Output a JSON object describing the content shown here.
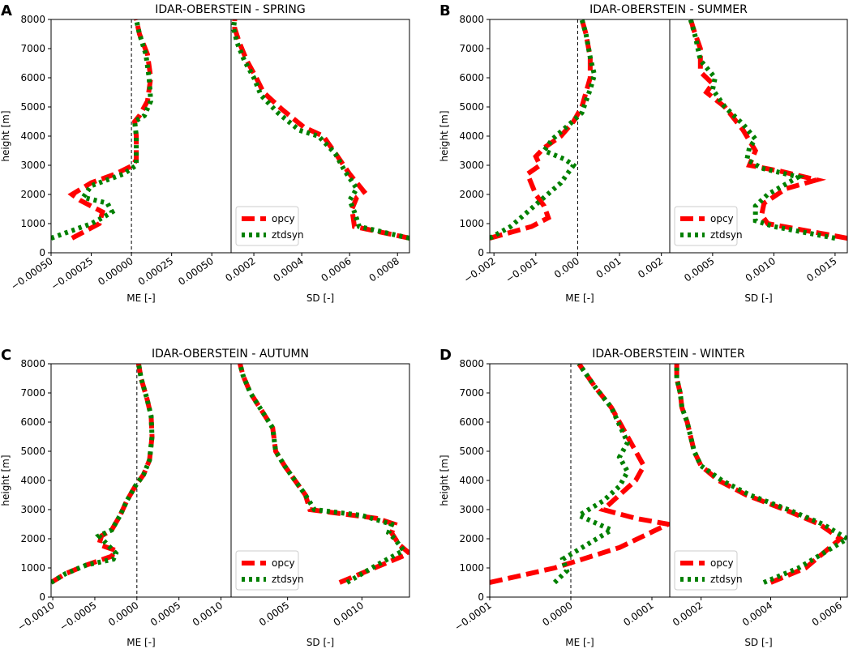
{
  "chart_data": [
    {
      "type": "line",
      "panel_label": "A",
      "title": "IDAR-OBERSTEIN - SPRING",
      "ylabel": "height [m]",
      "ylim": [
        0,
        8000
      ],
      "yticks": [
        "0",
        "1000",
        "2000",
        "3000",
        "4000",
        "5000",
        "6000",
        "7000",
        "8000"
      ],
      "me": {
        "xlabel": "ME [-]",
        "xlim": [
          -0.0005,
          0.00062
        ],
        "xticks": [
          -0.0005,
          -0.00025,
          0.0,
          0.00025,
          0.0005
        ],
        "xtick_labels": [
          "−0.00050",
          "−0.00025",
          "0.00000",
          "0.00025",
          "0.00050"
        ],
        "series": [
          {
            "name": "opcy",
            "x": [
              -0.00037,
              -0.0002,
              -0.00018,
              -0.00032,
              -0.00037,
              -0.00025,
              -0.0001,
              1e-05,
              3e-05,
              3e-05,
              2e-05,
              5e-05,
              0.0001,
              0.00012,
              0.0001,
              5e-05,
              3e-05
            ],
            "y": [
              500,
              1000,
              1400,
              1800,
              2000,
              2400,
              2700,
              3000,
              3200,
              4000,
              4500,
              4700,
              5200,
              6000,
              6800,
              7500,
              8000
            ]
          },
          {
            "name": "ztdsyn",
            "x": [
              -0.0005,
              -0.00025,
              -0.00018,
              -0.00012,
              -0.00015,
              -0.0003,
              -0.00025,
              -5e-05,
              3e-05,
              3e-05,
              2e-05,
              8e-05,
              0.00012,
              0.00011,
              9e-05,
              5e-05,
              3e-05
            ],
            "y": [
              500,
              1000,
              1200,
              1400,
              1700,
              1900,
              2300,
              2700,
              3000,
              4000,
              4500,
              4700,
              5200,
              6000,
              6800,
              7500,
              8000
            ]
          }
        ]
      },
      "sd": {
        "xlabel": "SD [-]",
        "xlim": [
          0.000105,
          0.00085
        ],
        "xticks": [
          0.0002,
          0.0004,
          0.0006,
          0.0008
        ],
        "xtick_labels": [
          "0.0002",
          "0.0004",
          "0.0006",
          "0.0008"
        ],
        "series": [
          {
            "name": "opcy",
            "x": [
              0.00085,
              0.00062,
              0.00061,
              0.00063,
              0.00066,
              0.0006,
              0.00055,
              0.00049,
              0.00041,
              0.00032,
              0.00024,
              0.00021,
              0.00017,
              0.00014,
              0.00012,
              0.00012
            ],
            "y": [
              500,
              900,
              1500,
              1900,
              2100,
              2700,
              3300,
              4000,
              4300,
              4900,
              5500,
              6000,
              6600,
              7200,
              7700,
              8000
            ]
          },
          {
            "name": "ztdsyn",
            "x": [
              0.00085,
              0.00064,
              0.00062,
              0.0006,
              0.00063,
              0.00058,
              0.00054,
              0.00047,
              0.00039,
              0.0003,
              0.00023,
              0.0002,
              0.00016,
              0.00013,
              0.000115,
              0.00012
            ],
            "y": [
              500,
              900,
              1400,
              1800,
              2200,
              2800,
              3400,
              4000,
              4200,
              4800,
              5400,
              6000,
              6600,
              7200,
              7700,
              8000
            ]
          }
        ]
      },
      "legend": [
        "opcy",
        "ztdsyn"
      ]
    },
    {
      "type": "line",
      "panel_label": "B",
      "title": "IDAR-OBERSTEIN - SUMMER",
      "ylabel": "height [m]",
      "ylim": [
        0,
        8000
      ],
      "yticks": [
        "0",
        "1000",
        "2000",
        "3000",
        "4000",
        "5000",
        "6000",
        "7000",
        "8000"
      ],
      "me": {
        "xlabel": "ME [-]",
        "xlim": [
          -0.0021,
          0.0022
        ],
        "xticks": [
          -0.002,
          -0.001,
          0.0,
          0.001,
          0.002
        ],
        "xtick_labels": [
          "−0.002",
          "−0.001",
          "0.000",
          "0.001",
          "0.002"
        ],
        "series": [
          {
            "name": "opcy",
            "x": [
              -0.0021,
              -0.0011,
              -0.0007,
              -0.0008,
              -0.001,
              -0.0012,
              -0.0009,
              -0.001,
              -0.0008,
              -0.0004,
              -0.0001,
              0.0001,
              0.0002,
              0.0003,
              0.0003,
              0.0002,
              0.0001
            ],
            "y": [
              500,
              900,
              1200,
              1600,
              2000,
              2700,
              3000,
              3300,
              3600,
              4000,
              4500,
              5000,
              5500,
              6000,
              6700,
              7500,
              8000
            ]
          },
          {
            "name": "ztdsyn",
            "x": [
              -0.0021,
              -0.0016,
              -0.0012,
              -0.0008,
              -0.0004,
              -0.0001,
              -0.0003,
              -0.0008,
              -0.0006,
              -0.0002,
              0.0001,
              0.0002,
              0.0003,
              0.0004,
              0.0003,
              0.0002,
              0.0001
            ],
            "y": [
              500,
              900,
              1400,
              1900,
              2400,
              3000,
              3200,
              3500,
              3900,
              4400,
              4800,
              5200,
              5600,
              6100,
              6700,
              7500,
              8000
            ]
          }
        ]
      },
      "sd": {
        "xlabel": "SD [-]",
        "xlim": [
          0.00015,
          0.0016
        ],
        "xticks": [
          0.0005,
          0.001,
          0.0015
        ],
        "xtick_labels": [
          "0.0005",
          "0.0010",
          "0.0015"
        ],
        "series": [
          {
            "name": "opcy",
            "x": [
              0.0016,
              0.00095,
              0.0009,
              0.00092,
              0.0011,
              0.00135,
              0.00105,
              0.0008,
              0.00085,
              0.00075,
              0.0006,
              0.00045,
              0.0005,
              0.0004,
              0.0004,
              0.00035,
              0.00032
            ],
            "y": [
              500,
              1000,
              1300,
              1700,
              2200,
              2500,
              2800,
              3000,
              3500,
              4200,
              5000,
              5500,
              5800,
              6200,
              7000,
              7600,
              8000
            ]
          },
          {
            "name": "ztdsyn",
            "x": [
              0.0015,
              0.001,
              0.00085,
              0.00085,
              0.00095,
              0.0012,
              0.0009,
              0.00078,
              0.0008,
              0.00085,
              0.00075,
              0.0006,
              0.0005,
              0.00052,
              0.0004,
              0.00036,
              0.00032
            ],
            "y": [
              500,
              900,
              1100,
              1600,
              2000,
              2600,
              2900,
              3200,
              3600,
              3900,
              4400,
              5000,
              5600,
              6000,
              6600,
              7400,
              8000
            ]
          }
        ]
      },
      "legend": [
        "opcy",
        "ztdsyn"
      ]
    },
    {
      "type": "line",
      "panel_label": "C",
      "title": "IDAR-OBERSTEIN - AUTUMN",
      "ylabel": "height [m]",
      "ylim": [
        0,
        8000
      ],
      "yticks": [
        "0",
        "1000",
        "2000",
        "3000",
        "4000",
        "5000",
        "6000",
        "7000",
        "8000"
      ],
      "me": {
        "xlabel": "ME [-]",
        "xlim": [
          -0.00102,
          0.00112
        ],
        "xticks": [
          -0.001,
          -0.0005,
          0.0,
          0.0005,
          0.001
        ],
        "xtick_labels": [
          "−0.0010",
          "−0.0005",
          "0.0000",
          "0.0005",
          "0.0010"
        ],
        "series": [
          {
            "name": "opcy",
            "x": [
              -0.00102,
              -0.00085,
              -0.0006,
              -0.0003,
              -0.00025,
              -0.00045,
              -0.00042,
              -0.0003,
              -0.0002,
              -0.00012,
              -2e-05,
              8e-05,
              0.00015,
              0.00018,
              0.00017,
              0.00012,
              5e-05,
              2e-05
            ],
            "y": [
              500,
              800,
              1100,
              1400,
              1600,
              1800,
              2100,
              2300,
              2800,
              3300,
              3800,
              4200,
              4700,
              5500,
              6200,
              6800,
              7500,
              8000
            ]
          },
          {
            "name": "ztdsyn",
            "x": [
              -0.00102,
              -0.00085,
              -0.0006,
              -0.00028,
              -0.00025,
              -0.00035,
              -0.00045,
              -0.0003,
              -0.0002,
              -0.00012,
              -2e-05,
              8e-05,
              0.00015,
              0.00018,
              0.00017,
              0.00012,
              5e-05,
              2e-05
            ],
            "y": [
              500,
              800,
              1100,
              1300,
              1500,
              1800,
              2100,
              2300,
              2800,
              3300,
              3800,
              4200,
              4700,
              5500,
              6200,
              6800,
              7500,
              8000
            ]
          }
        ]
      },
      "sd": {
        "xlabel": "SD [-]",
        "xlim": [
          0.00012,
          0.00132
        ],
        "xticks": [
          0.0005,
          0.001
        ],
        "xtick_labels": [
          "0.0005",
          "0.0010"
        ],
        "series": [
          {
            "name": "opcy",
            "x": [
              0.00085,
              0.00132,
              0.00125,
              0.0012,
              0.00122,
              0.0011,
              0.0008,
              0.00065,
              0.00062,
              0.00055,
              0.00048,
              0.00042,
              0.0004,
              0.00035,
              0.00025,
              0.0002,
              0.00018
            ],
            "y": [
              500,
              1500,
              1800,
              2200,
              2500,
              2700,
              2900,
              3000,
              3500,
              4000,
              4500,
              5000,
              5800,
              6200,
              7000,
              7600,
              8000
            ]
          },
          {
            "name": "ztdsyn",
            "x": [
              0.0009,
              0.0011,
              0.00128,
              0.00122,
              0.00118,
              0.0012,
              0.001,
              0.00068,
              0.00062,
              0.00055,
              0.00048,
              0.00042,
              0.0004,
              0.00035,
              0.00025,
              0.0002,
              0.00018
            ],
            "y": [
              500,
              1100,
              1600,
              2000,
              2200,
              2500,
              2800,
              3000,
              3500,
              4000,
              4500,
              5000,
              5800,
              6200,
              7000,
              7600,
              8000
            ]
          }
        ]
      },
      "legend": [
        "opcy",
        "ztdsyn"
      ]
    },
    {
      "type": "line",
      "panel_label": "D",
      "title": "IDAR-OBERSTEIN - WINTER",
      "ylabel": "height [m]",
      "ylim": [
        0,
        8000
      ],
      "yticks": [
        "0",
        "1000",
        "2000",
        "3000",
        "4000",
        "5000",
        "6000",
        "7000",
        "8000"
      ],
      "me": {
        "xlabel": "ME [-]",
        "xlim": [
          -0.0001,
          0.000122
        ],
        "xticks": [
          -0.0001,
          0.0,
          0.0001
        ],
        "xtick_labels": [
          "−0.0001",
          "0.0000",
          "0.0001"
        ],
        "series": [
          {
            "name": "opcy",
            "x": [
              -0.0001,
              -2e-05,
              6e-05,
              0.00012,
              8e-05,
              4e-05,
              6e-05,
              8e-05,
              9e-05,
              8e-05,
              7e-05,
              6e-05,
              5e-05,
              3e-05,
              1e-05
            ],
            "y": [
              500,
              1000,
              1700,
              2500,
              2700,
              3000,
              3500,
              4000,
              4500,
              5000,
              5500,
              6000,
              6500,
              7200,
              8000
            ]
          },
          {
            "name": "ztdsyn",
            "x": [
              -2e-05,
              -5e-06,
              -1e-05,
              2e-05,
              5e-05,
              1e-05,
              4e-05,
              6e-05,
              7e-05,
              6e-05,
              7e-05,
              6e-05,
              5e-05,
              3e-05,
              1e-05
            ],
            "y": [
              500,
              900,
              1300,
              1800,
              2300,
              2800,
              3300,
              3800,
              4300,
              4800,
              5300,
              5900,
              6500,
              7200,
              8000
            ]
          }
        ]
      },
      "sd": {
        "xlabel": "SD [-]",
        "xlim": [
          0.00011,
          0.00062
        ],
        "xticks": [
          0.0002,
          0.0004,
          0.0006
        ],
        "xtick_labels": [
          "0.0002",
          "0.0004",
          "0.0006"
        ],
        "series": [
          {
            "name": "opcy",
            "x": [
              0.0004,
              0.0005,
              0.0006,
              0.00054,
              0.00044,
              0.00033,
              0.00025,
              0.0002,
              0.00018,
              0.00017,
              0.00016,
              0.000145,
              0.00014,
              0.00013,
              0.00013
            ],
            "y": [
              500,
              1000,
              2000,
              2500,
              3000,
              3500,
              4000,
              4500,
              5000,
              5500,
              6000,
              6500,
              7000,
              7500,
              8000
            ]
          },
          {
            "name": "ztdsyn",
            "x": [
              0.00038,
              0.00048,
              0.00062,
              0.00055,
              0.00045,
              0.00034,
              0.00026,
              0.0002,
              0.00018,
              0.00017,
              0.00016,
              0.000145,
              0.00014,
              0.00013,
              0.00013
            ],
            "y": [
              500,
              1000,
              2000,
              2500,
              3000,
              3500,
              4000,
              4500,
              5000,
              5500,
              6000,
              6500,
              7000,
              7500,
              8000
            ]
          }
        ]
      },
      "legend": [
        "opcy",
        "ztdsyn"
      ]
    }
  ],
  "colors": {
    "opcy": "#ff0000",
    "ztdsyn": "#008000",
    "axis": "#000000"
  }
}
